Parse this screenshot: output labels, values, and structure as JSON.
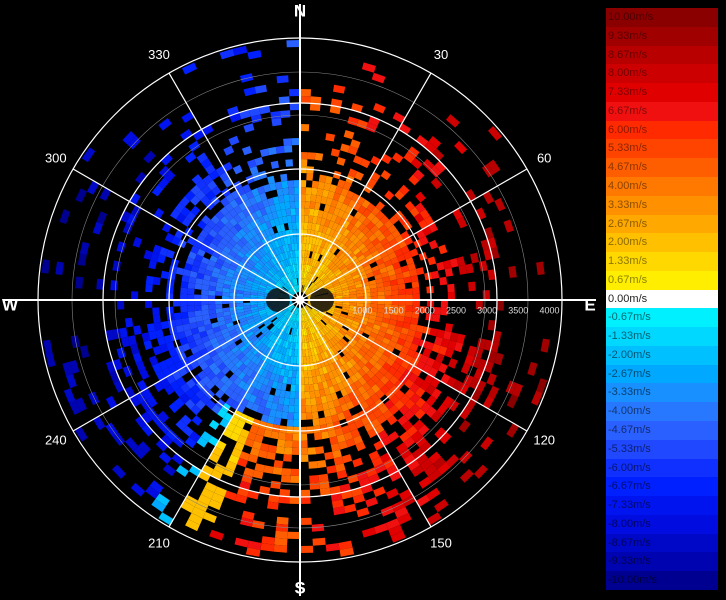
{
  "chart_data": {
    "type": "polar-heatmap",
    "title": "",
    "cardinals": [
      "N",
      "E",
      "S",
      "W"
    ],
    "bearing_labels": [
      "30",
      "60",
      "120",
      "150",
      "210",
      "240",
      "300",
      "330"
    ],
    "range_labels": [
      "1000",
      "1500",
      "2000",
      "2500",
      "3000",
      "3500",
      "4000"
    ],
    "range_max": 4200,
    "legend": {
      "labels": [
        "10.00m/s",
        "9.33m/s",
        "8.67m/s",
        "8.00m/s",
        "7.33m/s",
        "6.67m/s",
        "6.00m/s",
        "5.33m/s",
        "4.67m/s",
        "4.00m/s",
        "3.33m/s",
        "2.67m/s",
        "2.00m/s",
        "1.33m/s",
        "0.67m/s",
        "0.00m/s",
        "-0.67m/s",
        "-1.33m/s",
        "-2.00m/s",
        "-2.67m/s",
        "-3.33m/s",
        "-4.00m/s",
        "-4.67m/s",
        "-5.33m/s",
        "-6.00m/s",
        "-6.67m/s",
        "-7.33m/s",
        "-8.00m/s",
        "-8.67m/s",
        "-9.33m/s",
        "-10.00m/s"
      ],
      "colors": [
        "#8a0000",
        "#a00000",
        "#b80000",
        "#cc0000",
        "#e00000",
        "#f01010",
        "#ff2a00",
        "#ff4400",
        "#ff5e00",
        "#ff7800",
        "#ff9000",
        "#ffa800",
        "#ffc000",
        "#ffd800",
        "#ffee00",
        "#ffffff",
        "#00f0ff",
        "#00d8ff",
        "#00c0ff",
        "#00a8ff",
        "#1890ff",
        "#2878ff",
        "#2a60ff",
        "#2048ff",
        "#1030ff",
        "#0020ff",
        "#0014f0",
        "#000ce0",
        "#0008c8",
        "#0004b0",
        "#000090"
      ]
    }
  }
}
